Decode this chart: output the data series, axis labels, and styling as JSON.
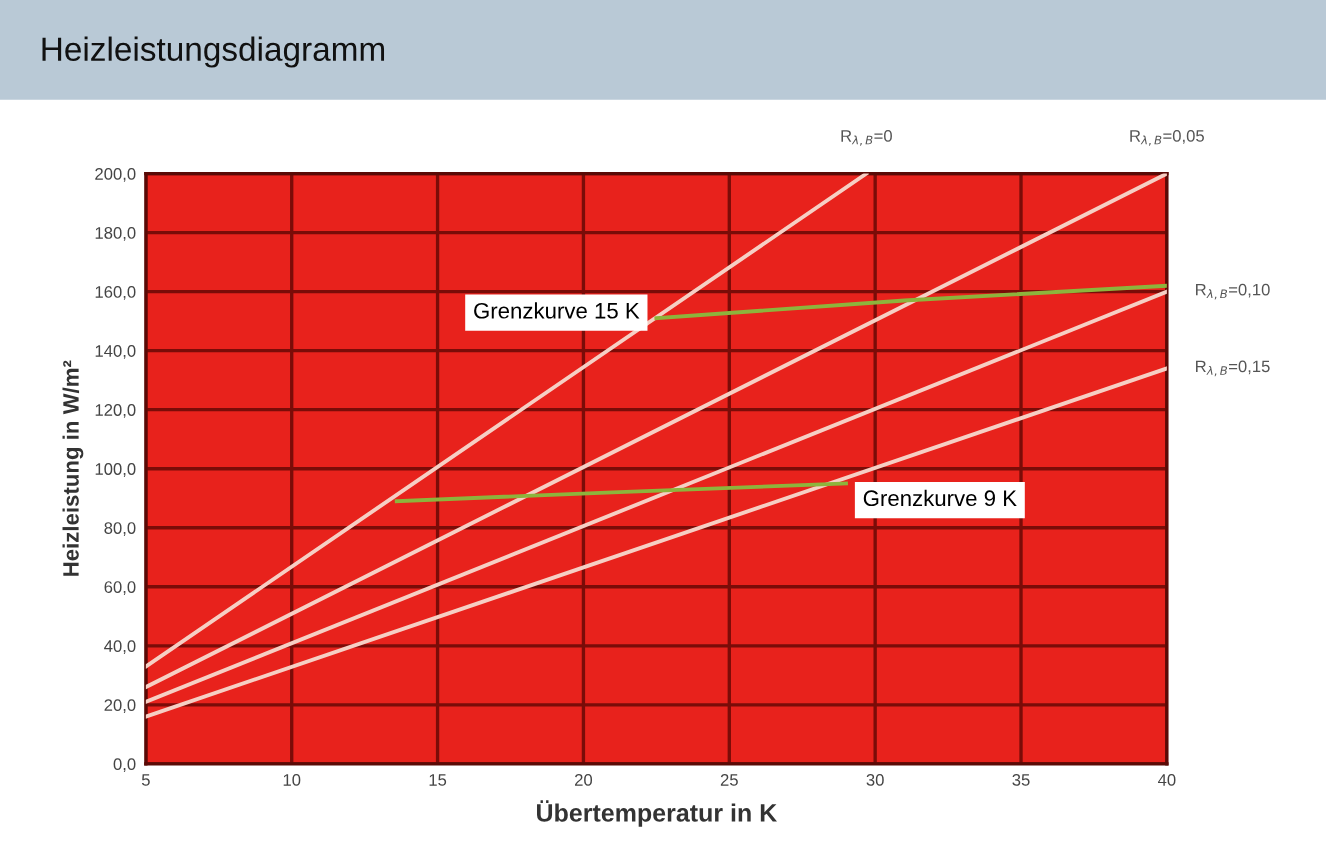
{
  "chart_data": {
    "type": "line",
    "title": "Heizleistungsdiagramm",
    "xlabel": "Übertemperatur in K",
    "ylabel": "Heizleistung in W/m²",
    "xlim": [
      5,
      40
    ],
    "xticks": [
      5,
      10,
      15,
      20,
      25,
      30,
      35,
      40
    ],
    "ylim": [
      0,
      200
    ],
    "yticks": [
      {
        "value": 0,
        "label": "0,0"
      },
      {
        "value": 20,
        "label": "20,0"
      },
      {
        "value": 40,
        "label": "40,0"
      },
      {
        "value": 60,
        "label": "60,0"
      },
      {
        "value": 80,
        "label": "80,0"
      },
      {
        "value": 100,
        "label": "100,0"
      },
      {
        "value": 120,
        "label": "120,0"
      },
      {
        "value": 140,
        "label": "140,0"
      },
      {
        "value": 160,
        "label": "160,0"
      },
      {
        "value": 180,
        "label": "180,0"
      },
      {
        "value": 200,
        "label": "200,0"
      }
    ],
    "grid": true,
    "marker": "none",
    "line_style": "solid",
    "series": [
      {
        "name": "R$_{λ,B}$=0",
        "color": "#f6cfc4",
        "x": [
          5,
          29.7
        ],
        "values": [
          33,
          200
        ]
      },
      {
        "name": "R$_{λ,B}$=0,05",
        "color": "#f6cfc4",
        "x": [
          5,
          40
        ],
        "values": [
          26,
          200
        ]
      },
      {
        "name": "R$_{λ,B}$=0,10",
        "color": "#f6cfc4",
        "x": [
          5,
          40
        ],
        "values": [
          21,
          160
        ]
      },
      {
        "name": "R$_{λ,B}$=0,15",
        "color": "#f6cfc4",
        "x": [
          5,
          40
        ],
        "values": [
          16,
          134
        ]
      },
      {
        "name": "Grenzkurve 15 K",
        "color": "#8db43c",
        "x": [
          22.5,
          31,
          40
        ],
        "values": [
          151,
          157,
          162
        ]
      },
      {
        "name": "Grenzkurve 9 K",
        "color": "#8db43c",
        "x": [
          13.6,
          21,
          29
        ],
        "values": [
          89,
          92,
          95
        ]
      }
    ]
  }
}
